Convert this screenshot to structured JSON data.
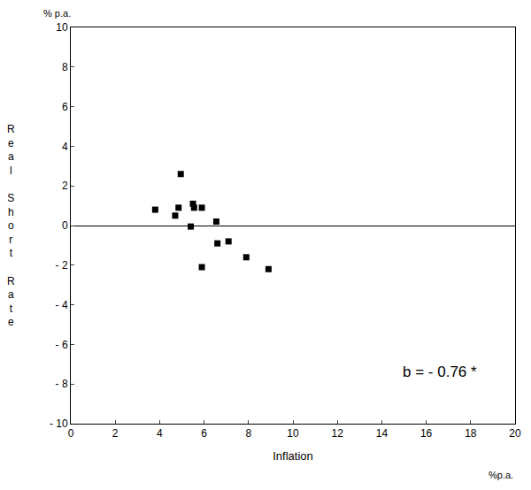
{
  "chart_data": {
    "type": "scatter",
    "x_label": "Inflation",
    "y_label": "Real Short Rate",
    "x_unit": "%p.a.",
    "y_unit": "% p.a.",
    "annotation": "b = - 0.76 *",
    "x": [
      3.8,
      4.7,
      4.85,
      4.95,
      5.4,
      5.5,
      5.55,
      5.9,
      5.9,
      6.55,
      6.6,
      7.1,
      7.9,
      8.9
    ],
    "values": [
      0.8,
      0.5,
      0.9,
      2.6,
      -0.05,
      1.1,
      0.9,
      0.9,
      -2.1,
      0.2,
      -0.9,
      -0.8,
      -1.6,
      -2.2
    ],
    "color": "#000000",
    "marker": "square",
    "xlim": [
      0,
      20
    ],
    "ylim": [
      -10,
      10
    ],
    "xticks": [
      0,
      2,
      4,
      6,
      8,
      10,
      12,
      14,
      16,
      18,
      20
    ],
    "yticks": [
      {
        "value": -10,
        "label": "- 10"
      },
      {
        "value": -8,
        "label": "- 8"
      },
      {
        "value": -6,
        "label": "- 6"
      },
      {
        "value": -4,
        "label": "- 4"
      },
      {
        "value": -2,
        "label": "- 2"
      },
      0,
      2,
      4,
      6,
      8,
      10
    ],
    "grid": false
  }
}
